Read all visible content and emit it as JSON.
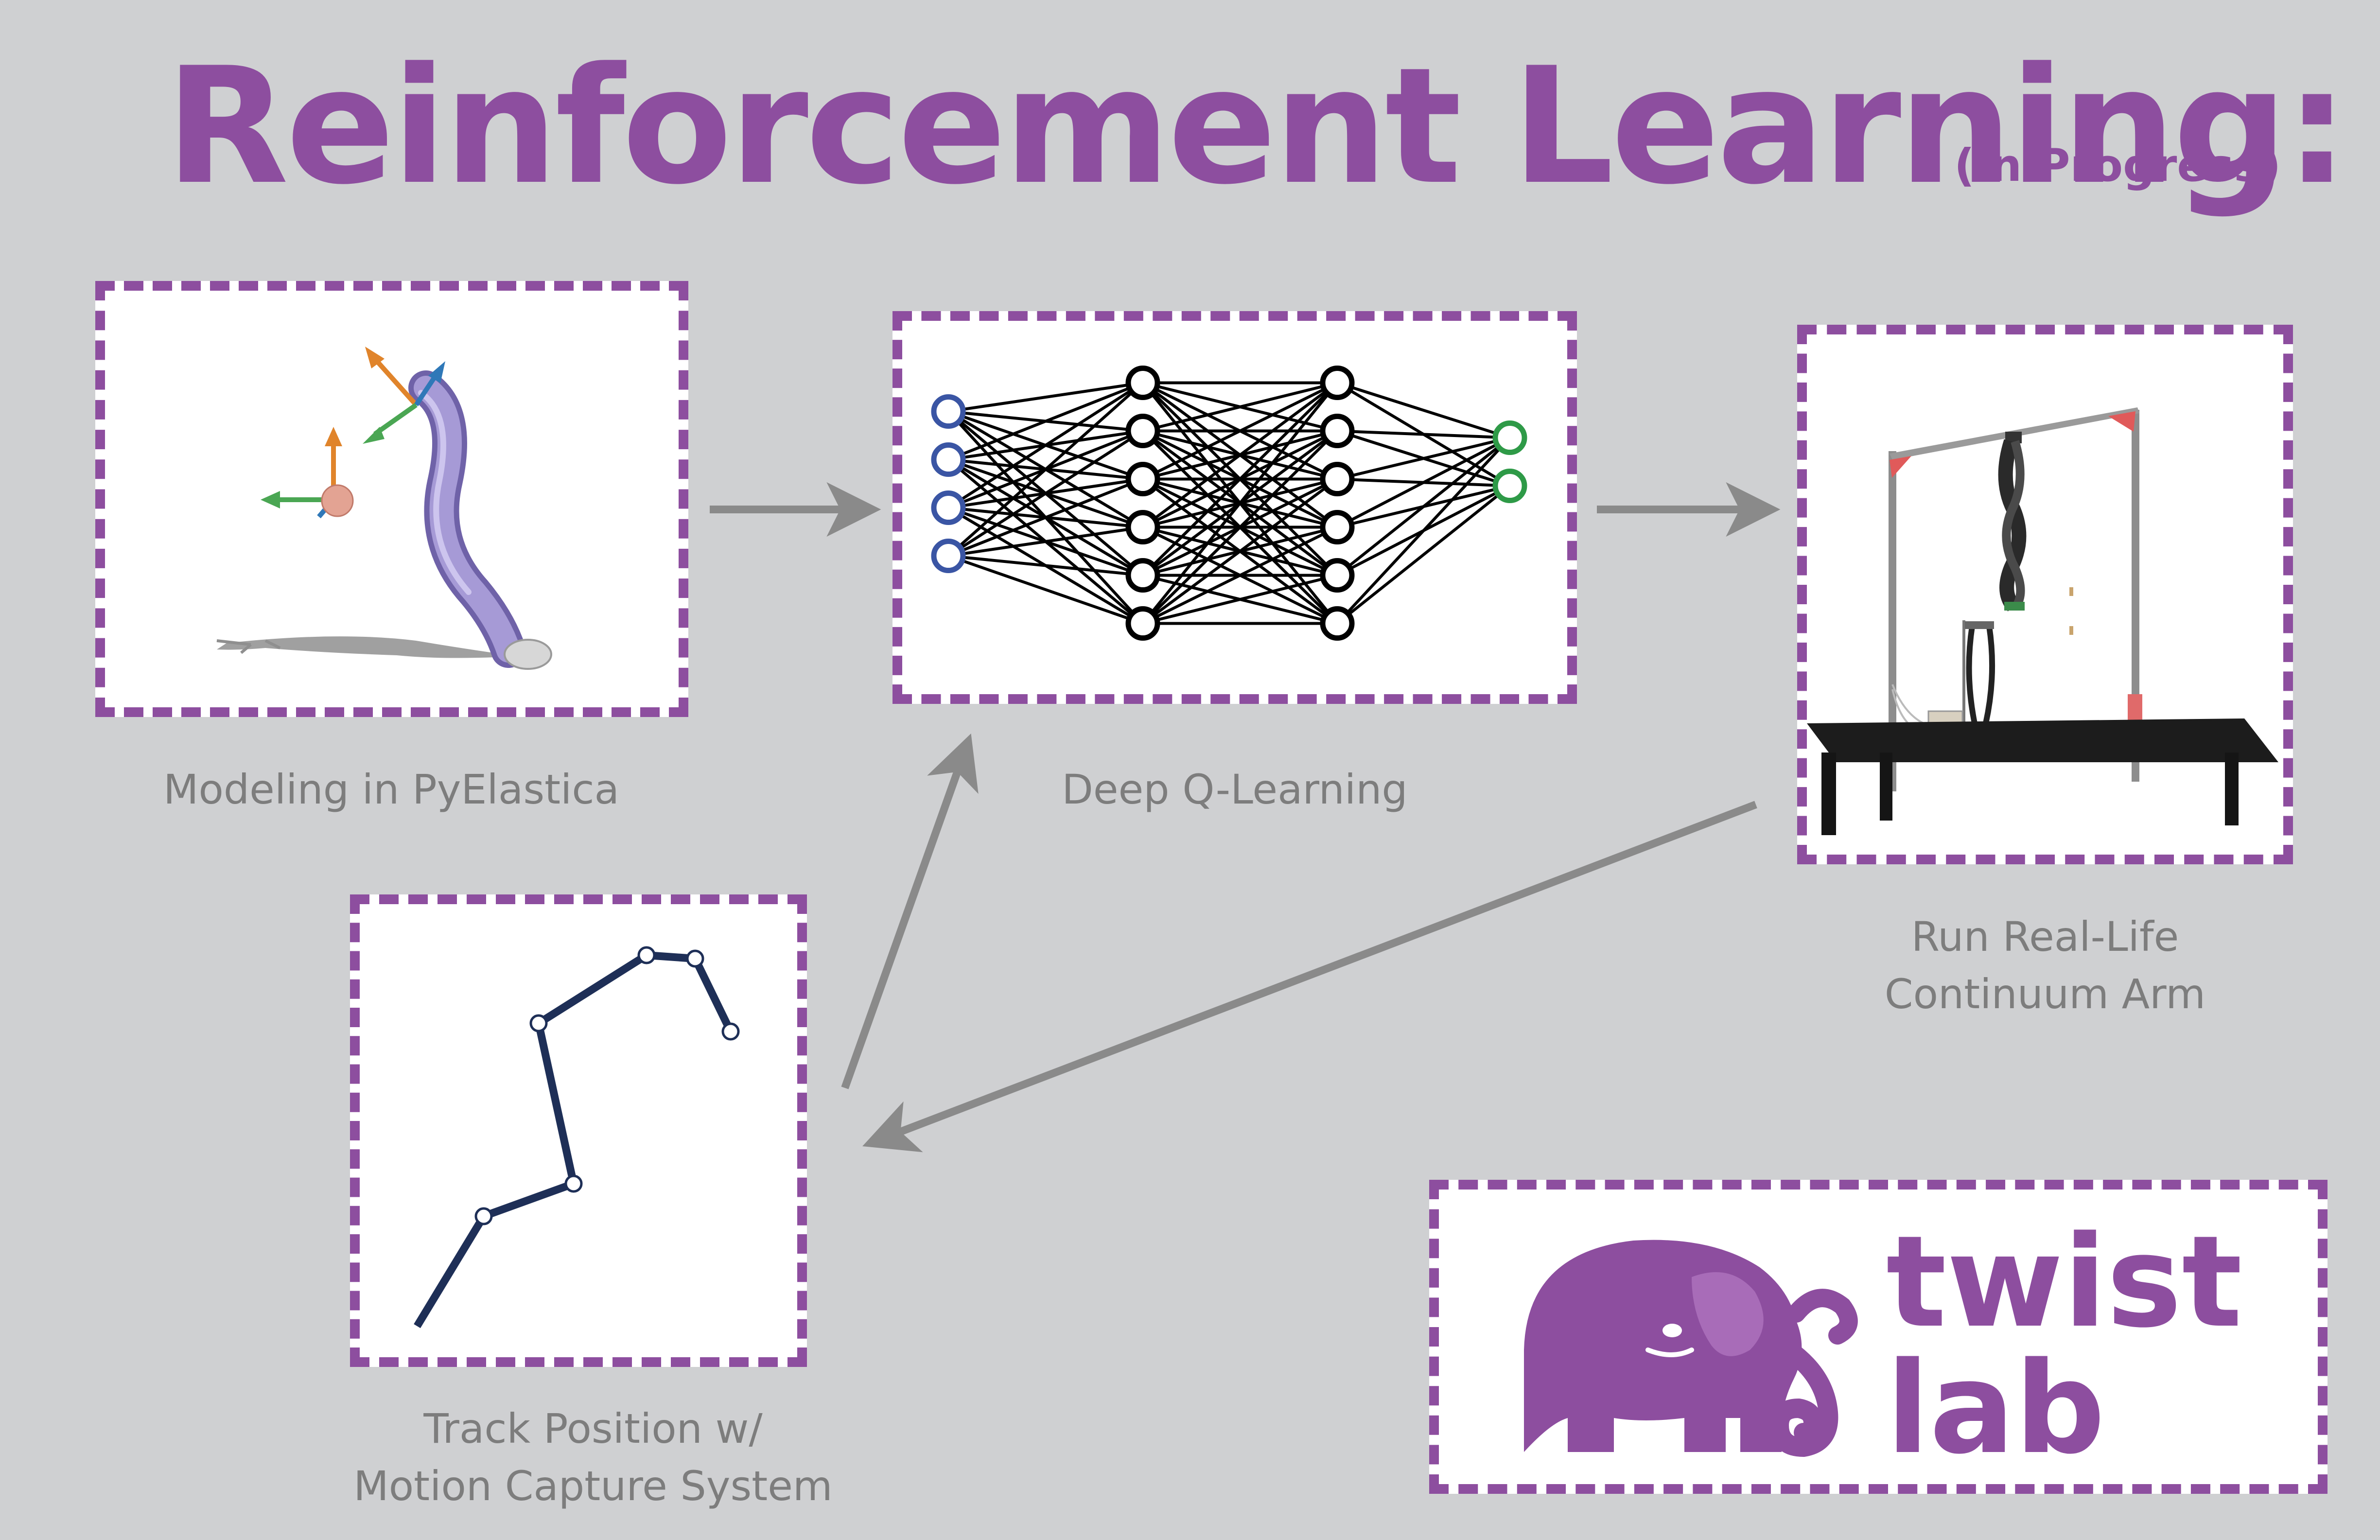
{
  "title": "Reinforcement Learning:",
  "subtitle": "(in Progress)",
  "steps": {
    "modeling": {
      "caption": "Modeling in PyElastica"
    },
    "dqn": {
      "caption": "Deep Q-Learning",
      "layers": [
        4,
        6,
        6,
        2
      ]
    },
    "real": {
      "caption_line1": "Run Real-Life",
      "caption_line2": "Continuum Arm"
    },
    "track": {
      "caption_line1": "Track Position w/",
      "caption_line2": "Motion Capture System"
    }
  },
  "logo": {
    "line1": "twist",
    "line2": "lab"
  },
  "colors": {
    "accent": "#8d4e9f",
    "background": "#cfd0d2",
    "arrow": "#8a8a8a",
    "input_node": "#3a55a4",
    "output_node": "#2e9a47",
    "trajectory": "#1e2f57"
  }
}
